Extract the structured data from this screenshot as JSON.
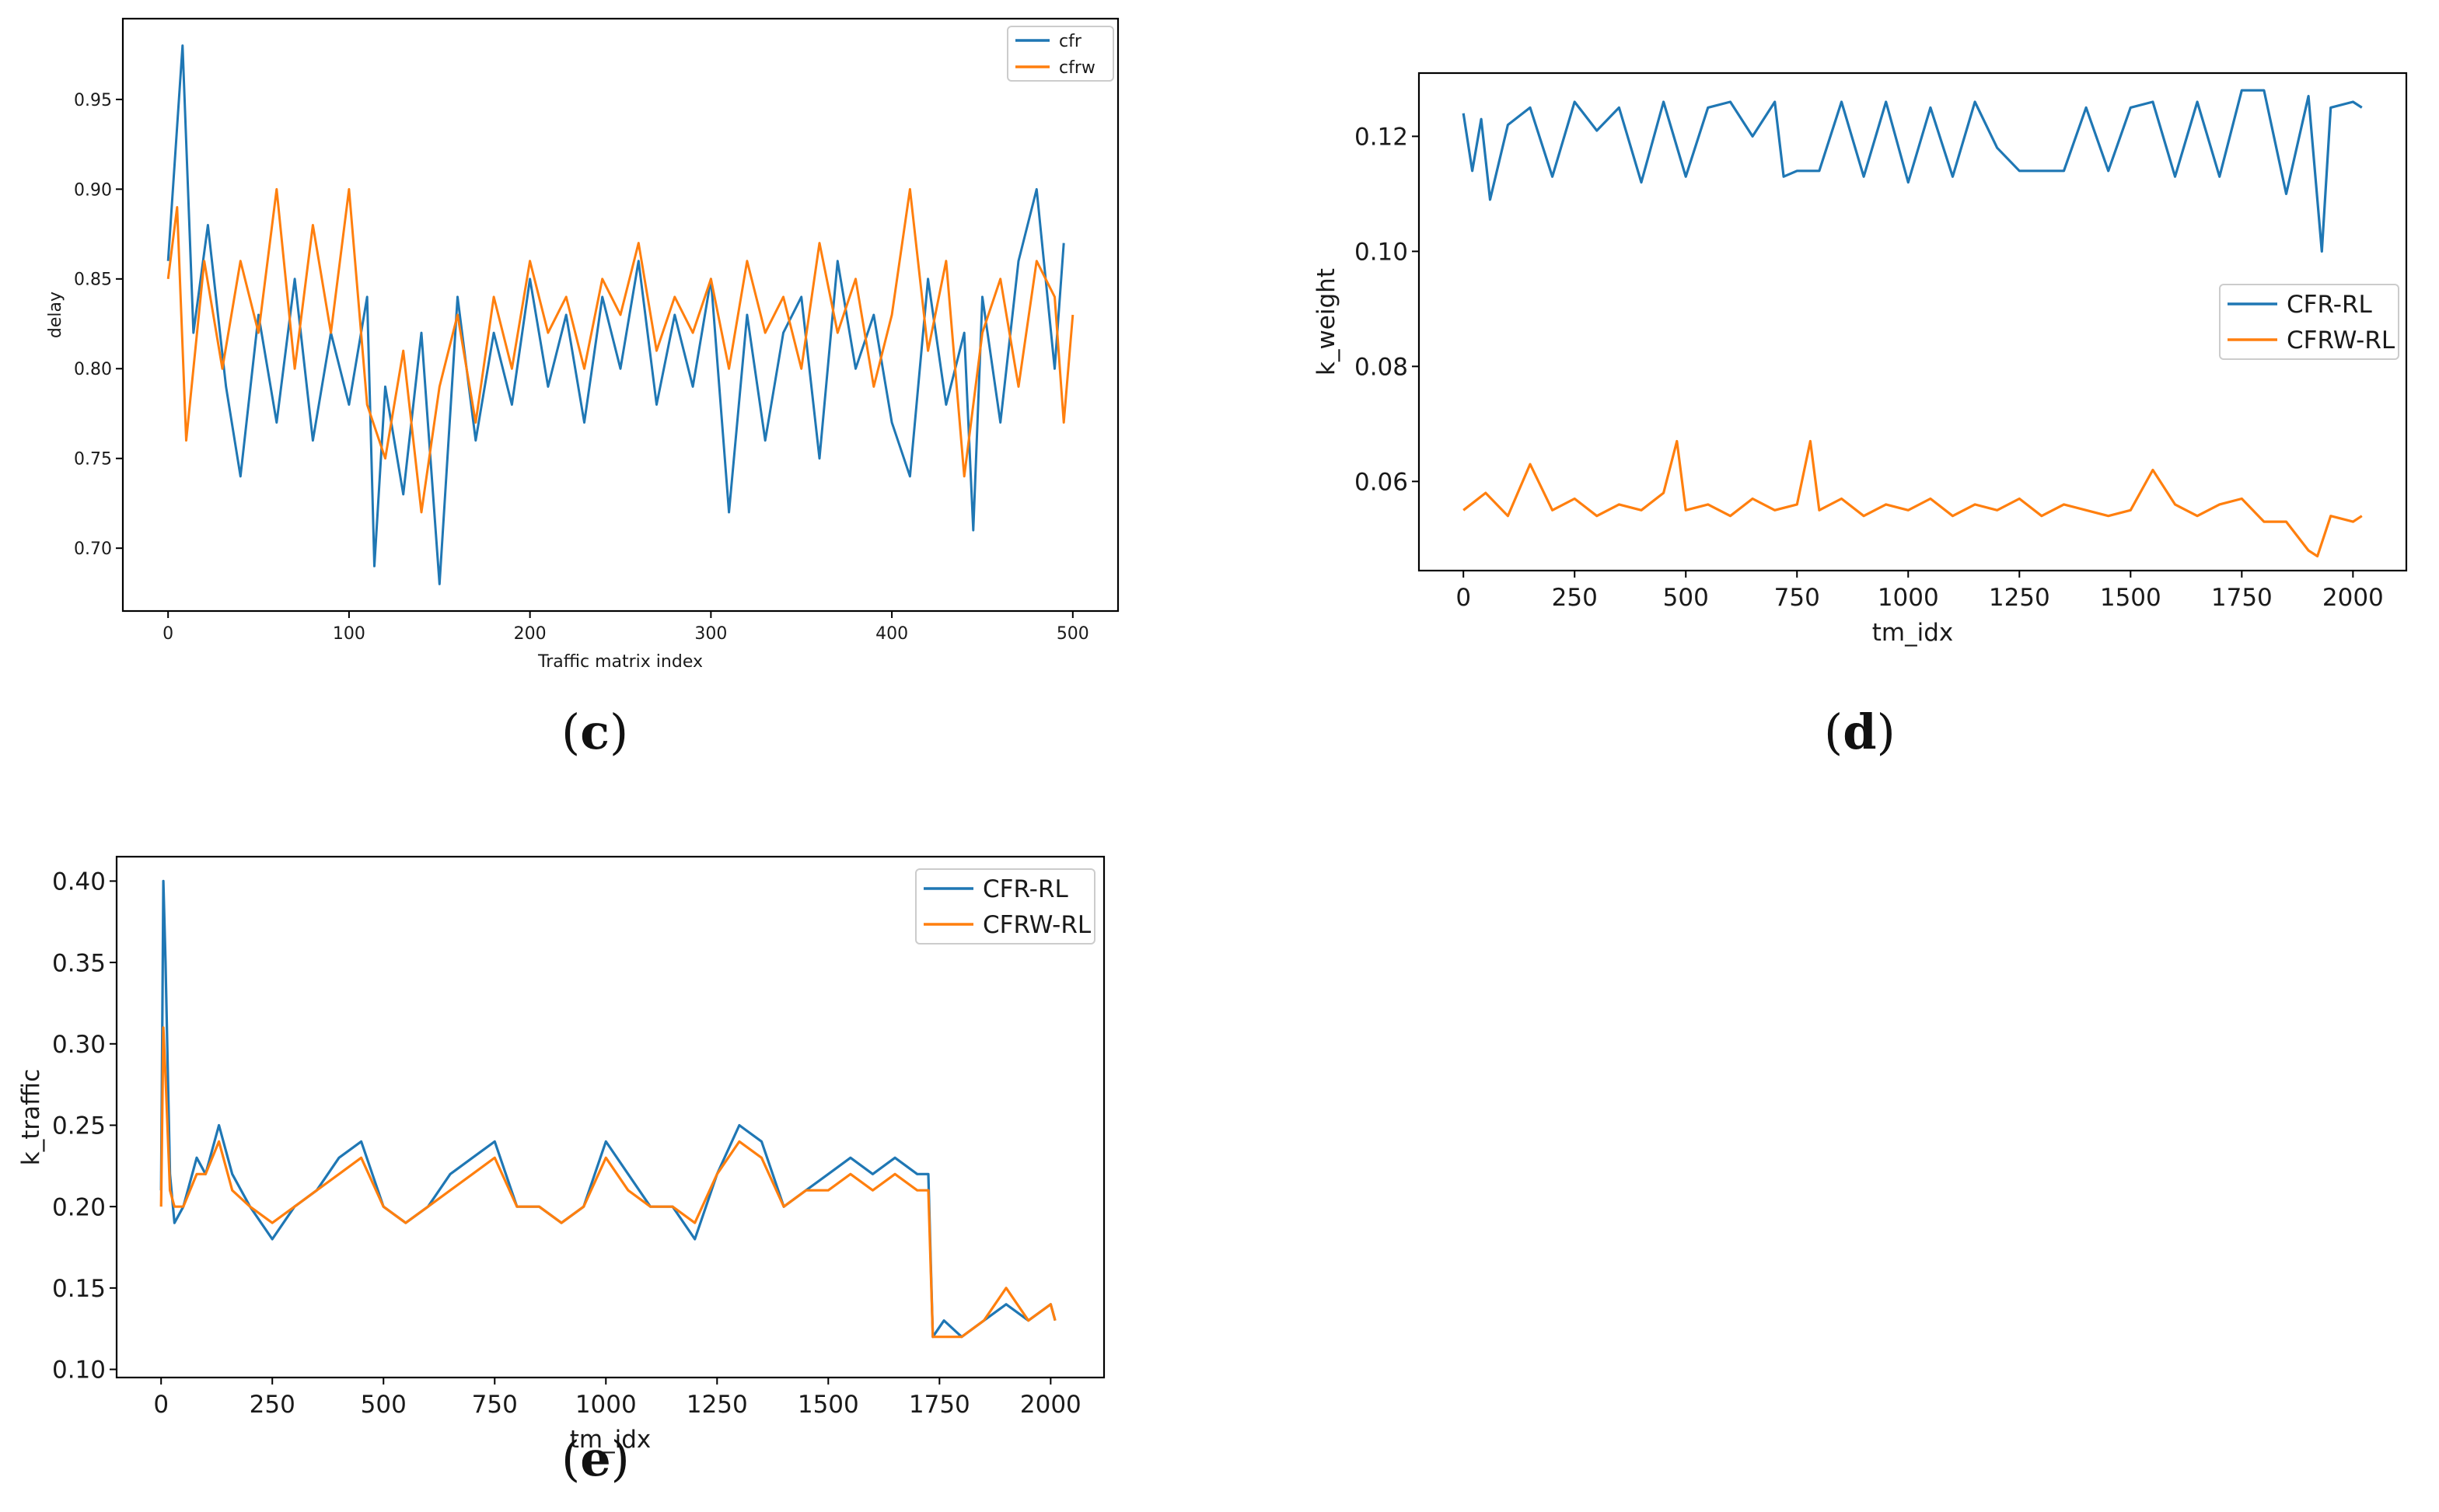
{
  "colors": {
    "series1": "#1f77b4",
    "series2": "#ff7f0e"
  },
  "captions": {
    "c": "c",
    "d": "d",
    "e": "e"
  },
  "chart_data": [
    {
      "id": "c",
      "type": "line",
      "title": "",
      "xlabel": "Traffic matrix index",
      "ylabel": "delay",
      "xlim": [
        -25,
        525
      ],
      "ylim": [
        0.665,
        0.995
      ],
      "xticks": [
        0,
        100,
        200,
        300,
        400,
        500
      ],
      "xtick_labels": [
        "0",
        "100",
        "200",
        "300",
        "400",
        "500"
      ],
      "yticks": [
        0.7,
        0.75,
        0.8,
        0.85,
        0.9,
        0.95
      ],
      "ytick_labels": [
        "0.70",
        "0.75",
        "0.80",
        "0.85",
        "0.90",
        "0.95"
      ],
      "legend": {
        "placement": "top-right",
        "entries": [
          "cfr",
          "cfrw"
        ]
      },
      "series": [
        {
          "name": "cfr",
          "x": [
            0,
            8,
            14,
            22,
            32,
            40,
            50,
            60,
            70,
            80,
            90,
            100,
            110,
            114,
            120,
            130,
            140,
            150,
            160,
            170,
            180,
            190,
            200,
            210,
            220,
            230,
            240,
            250,
            260,
            270,
            280,
            290,
            300,
            310,
            320,
            330,
            340,
            350,
            360,
            370,
            380,
            390,
            400,
            410,
            420,
            430,
            440,
            445,
            450,
            460,
            470,
            480,
            490,
            495
          ],
          "values": [
            0.86,
            0.98,
            0.82,
            0.88,
            0.79,
            0.74,
            0.83,
            0.77,
            0.85,
            0.76,
            0.82,
            0.78,
            0.84,
            0.69,
            0.79,
            0.73,
            0.82,
            0.68,
            0.84,
            0.76,
            0.82,
            0.78,
            0.85,
            0.79,
            0.83,
            0.77,
            0.84,
            0.8,
            0.86,
            0.78,
            0.83,
            0.79,
            0.85,
            0.72,
            0.83,
            0.76,
            0.82,
            0.84,
            0.75,
            0.86,
            0.8,
            0.83,
            0.77,
            0.74,
            0.85,
            0.78,
            0.82,
            0.71,
            0.84,
            0.77,
            0.86,
            0.9,
            0.8,
            0.87
          ]
        },
        {
          "name": "cfrw",
          "x": [
            0,
            5,
            10,
            20,
            30,
            40,
            50,
            60,
            70,
            80,
            90,
            100,
            110,
            120,
            130,
            140,
            150,
            160,
            170,
            180,
            190,
            200,
            210,
            220,
            230,
            240,
            250,
            260,
            270,
            280,
            290,
            300,
            310,
            320,
            330,
            340,
            350,
            360,
            370,
            380,
            390,
            400,
            410,
            420,
            430,
            440,
            450,
            460,
            470,
            480,
            490,
            495,
            500
          ],
          "values": [
            0.85,
            0.89,
            0.76,
            0.86,
            0.8,
            0.86,
            0.82,
            0.9,
            0.8,
            0.88,
            0.82,
            0.9,
            0.78,
            0.75,
            0.81,
            0.72,
            0.79,
            0.83,
            0.77,
            0.84,
            0.8,
            0.86,
            0.82,
            0.84,
            0.8,
            0.85,
            0.83,
            0.87,
            0.81,
            0.84,
            0.82,
            0.85,
            0.8,
            0.86,
            0.82,
            0.84,
            0.8,
            0.87,
            0.82,
            0.85,
            0.79,
            0.83,
            0.9,
            0.81,
            0.86,
            0.74,
            0.82,
            0.85,
            0.79,
            0.86,
            0.84,
            0.77,
            0.83
          ]
        }
      ]
    },
    {
      "id": "d",
      "type": "line",
      "title": "",
      "xlabel": "tm_idx",
      "ylabel": "k_weight",
      "xlim": [
        -100,
        2120
      ],
      "ylim": [
        0.0445,
        0.131
      ],
      "xticks": [
        0,
        250,
        500,
        750,
        1000,
        1250,
        1500,
        1750,
        2000
      ],
      "xtick_labels": [
        "0",
        "250",
        "500",
        "750",
        "1000",
        "1250",
        "1500",
        "1750",
        "2000"
      ],
      "yticks": [
        0.06,
        0.08,
        0.1,
        0.12
      ],
      "ytick_labels": [
        "0.06",
        "0.08",
        "0.10",
        "0.12"
      ],
      "legend": {
        "placement": "center-right",
        "entries": [
          "CFR-RL",
          "CFRW-RL"
        ]
      },
      "series": [
        {
          "name": "CFR-RL",
          "x": [
            0,
            20,
            40,
            60,
            100,
            150,
            200,
            250,
            300,
            350,
            400,
            450,
            500,
            550,
            600,
            650,
            700,
            720,
            750,
            800,
            850,
            900,
            950,
            1000,
            1050,
            1100,
            1150,
            1200,
            1250,
            1300,
            1350,
            1400,
            1450,
            1500,
            1550,
            1600,
            1650,
            1700,
            1750,
            1800,
            1850,
            1900,
            1930,
            1950,
            2000,
            2020
          ],
          "values": [
            0.124,
            0.114,
            0.123,
            0.109,
            0.122,
            0.125,
            0.113,
            0.126,
            0.121,
            0.125,
            0.112,
            0.126,
            0.113,
            0.125,
            0.126,
            0.12,
            0.126,
            0.113,
            0.114,
            0.114,
            0.126,
            0.113,
            0.126,
            0.112,
            0.125,
            0.113,
            0.126,
            0.118,
            0.114,
            0.114,
            0.114,
            0.125,
            0.114,
            0.125,
            0.126,
            0.113,
            0.126,
            0.113,
            0.128,
            0.128,
            0.11,
            0.127,
            0.1,
            0.125,
            0.126,
            0.125
          ]
        },
        {
          "name": "CFRW-RL",
          "x": [
            0,
            50,
            100,
            150,
            200,
            250,
            300,
            350,
            400,
            450,
            480,
            500,
            550,
            600,
            650,
            700,
            750,
            780,
            800,
            850,
            900,
            950,
            1000,
            1050,
            1100,
            1150,
            1200,
            1250,
            1300,
            1350,
            1400,
            1450,
            1500,
            1550,
            1600,
            1650,
            1700,
            1750,
            1800,
            1850,
            1900,
            1920,
            1950,
            2000,
            2020
          ],
          "values": [
            0.055,
            0.058,
            0.054,
            0.063,
            0.055,
            0.057,
            0.054,
            0.056,
            0.055,
            0.058,
            0.067,
            0.055,
            0.056,
            0.054,
            0.057,
            0.055,
            0.056,
            0.067,
            0.055,
            0.057,
            0.054,
            0.056,
            0.055,
            0.057,
            0.054,
            0.056,
            0.055,
            0.057,
            0.054,
            0.056,
            0.055,
            0.054,
            0.055,
            0.062,
            0.056,
            0.054,
            0.056,
            0.057,
            0.053,
            0.053,
            0.048,
            0.047,
            0.054,
            0.053,
            0.054
          ]
        }
      ]
    },
    {
      "id": "e",
      "type": "line",
      "title": "",
      "xlabel": "tm_idx",
      "ylabel": "k_traffic",
      "xlim": [
        -100,
        2120
      ],
      "ylim": [
        0.095,
        0.415
      ],
      "xticks": [
        0,
        250,
        500,
        750,
        1000,
        1250,
        1500,
        1750,
        2000
      ],
      "xtick_labels": [
        "0",
        "250",
        "500",
        "750",
        "1000",
        "1250",
        "1500",
        "1750",
        "2000"
      ],
      "yticks": [
        0.1,
        0.15,
        0.2,
        0.25,
        0.3,
        0.35,
        0.4
      ],
      "ytick_labels": [
        "0.10",
        "0.15",
        "0.20",
        "0.25",
        "0.30",
        "0.35",
        "0.40"
      ],
      "legend": {
        "placement": "top-right",
        "entries": [
          "CFR-RL",
          "CFRW-RL"
        ]
      },
      "series": [
        {
          "name": "CFR-RL",
          "x": [
            0,
            5,
            10,
            20,
            30,
            50,
            80,
            100,
            130,
            160,
            200,
            250,
            300,
            350,
            400,
            450,
            500,
            550,
            600,
            650,
            700,
            750,
            800,
            850,
            900,
            950,
            1000,
            1050,
            1100,
            1150,
            1200,
            1250,
            1300,
            1350,
            1400,
            1450,
            1500,
            1550,
            1600,
            1650,
            1700,
            1725,
            1735,
            1760,
            1800,
            1850,
            1900,
            1950,
            2000,
            2010
          ],
          "values": [
            0.21,
            0.4,
            0.35,
            0.22,
            0.19,
            0.2,
            0.23,
            0.22,
            0.25,
            0.22,
            0.2,
            0.18,
            0.2,
            0.21,
            0.23,
            0.24,
            0.2,
            0.19,
            0.2,
            0.22,
            0.23,
            0.24,
            0.2,
            0.2,
            0.19,
            0.2,
            0.24,
            0.22,
            0.2,
            0.2,
            0.18,
            0.22,
            0.25,
            0.24,
            0.2,
            0.21,
            0.22,
            0.23,
            0.22,
            0.23,
            0.22,
            0.22,
            0.12,
            0.13,
            0.12,
            0.13,
            0.14,
            0.13,
            0.14,
            0.13
          ]
        },
        {
          "name": "CFRW-RL",
          "x": [
            0,
            5,
            10,
            20,
            30,
            50,
            80,
            100,
            130,
            160,
            200,
            250,
            300,
            350,
            400,
            450,
            500,
            550,
            600,
            650,
            700,
            750,
            800,
            850,
            900,
            950,
            1000,
            1050,
            1100,
            1150,
            1200,
            1250,
            1300,
            1350,
            1400,
            1450,
            1500,
            1550,
            1600,
            1650,
            1700,
            1725,
            1735,
            1760,
            1800,
            1850,
            1900,
            1950,
            2000,
            2010
          ],
          "values": [
            0.2,
            0.31,
            0.28,
            0.21,
            0.2,
            0.2,
            0.22,
            0.22,
            0.24,
            0.21,
            0.2,
            0.19,
            0.2,
            0.21,
            0.22,
            0.23,
            0.2,
            0.19,
            0.2,
            0.21,
            0.22,
            0.23,
            0.2,
            0.2,
            0.19,
            0.2,
            0.23,
            0.21,
            0.2,
            0.2,
            0.19,
            0.22,
            0.24,
            0.23,
            0.2,
            0.21,
            0.21,
            0.22,
            0.21,
            0.22,
            0.21,
            0.21,
            0.12,
            0.12,
            0.12,
            0.13,
            0.15,
            0.13,
            0.14,
            0.13
          ]
        }
      ]
    }
  ]
}
